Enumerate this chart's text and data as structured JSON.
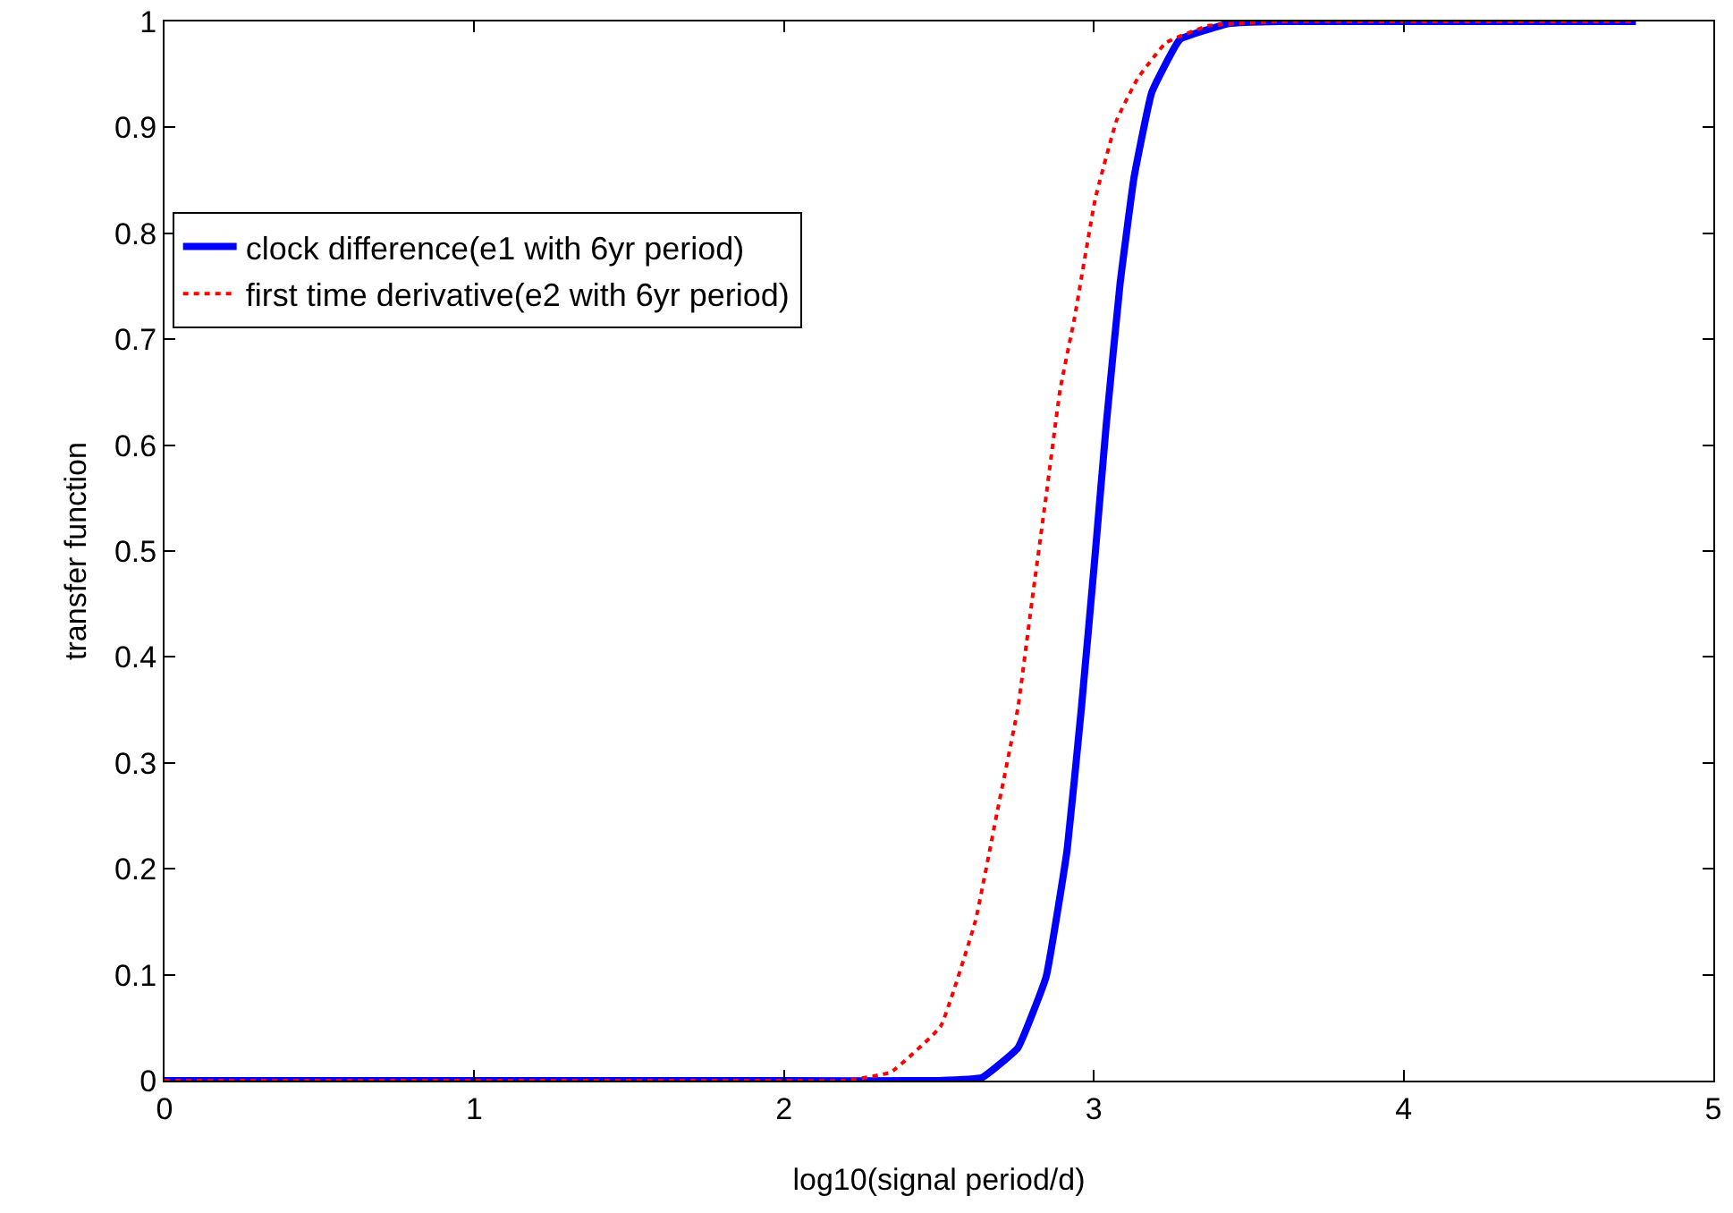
{
  "chart_data": {
    "type": "line",
    "xlabel": "log10(signal period/d)",
    "ylabel": "transfer function",
    "xlim": [
      0,
      5
    ],
    "ylim": [
      0,
      1
    ],
    "xticks": [
      0,
      1,
      2,
      3,
      4,
      5
    ],
    "yticks": [
      0,
      0.1,
      0.2,
      0.3,
      0.4,
      0.5,
      0.6,
      0.7,
      0.8,
      0.9,
      1
    ],
    "grid": false,
    "legend": "top left",
    "marker": "none",
    "series": [
      {
        "name": "clock difference(e1 with 6yr period)",
        "color": "#0000ff",
        "line_style": "solid",
        "x": [
          0,
          1,
          2,
          2.5,
          2.64,
          2.755,
          2.846,
          2.914,
          2.96,
          3.005,
          3.04,
          3.085,
          3.13,
          3.187,
          3.278,
          3.437,
          3.6,
          4,
          4.75
        ],
        "values": [
          0,
          0,
          0,
          0,
          0.003,
          0.031,
          0.098,
          0.218,
          0.352,
          0.499,
          0.619,
          0.753,
          0.853,
          0.933,
          0.983,
          0.998,
          1,
          1,
          1
        ]
      },
      {
        "name": "first time derivative(e2 with 6yr period)",
        "color": "#ff0000",
        "line_style": "dotted",
        "x": [
          0,
          1,
          2,
          2.2,
          2.345,
          2.505,
          2.618,
          2.687,
          2.755,
          2.8,
          2.846,
          2.891,
          2.937,
          3.005,
          3.074,
          3.141,
          3.233,
          3.37,
          3.6,
          4,
          4.75
        ],
        "values": [
          0,
          0,
          0,
          0,
          0.008,
          0.051,
          0.151,
          0.252,
          0.352,
          0.452,
          0.552,
          0.652,
          0.719,
          0.833,
          0.907,
          0.946,
          0.98,
          0.996,
          1,
          1,
          1
        ]
      }
    ]
  }
}
